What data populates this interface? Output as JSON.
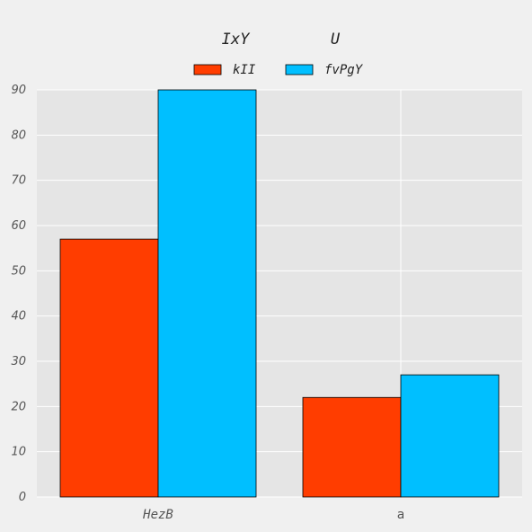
{
  "chart_data": {
    "type": "bar",
    "title_parts": [
      "IxY",
      "U"
    ],
    "categories": [
      "HezB",
      "a"
    ],
    "series": [
      {
        "name": "kII",
        "values": [
          57,
          22
        ],
        "color": "#ff3d00"
      },
      {
        "name": "fvPgY",
        "values": [
          90,
          27
        ],
        "color": "#00bfff"
      }
    ],
    "xlabel": "",
    "ylabel": "",
    "ylim": [
      0,
      90
    ],
    "yticks": [
      0,
      10,
      20,
      30,
      40,
      50,
      60,
      70,
      80,
      90
    ],
    "grid": true,
    "legend_position": "top-center",
    "colors": {
      "background": "#f0f0f0",
      "plot_background": "#e5e5e5",
      "grid": "#ffffff"
    }
  }
}
